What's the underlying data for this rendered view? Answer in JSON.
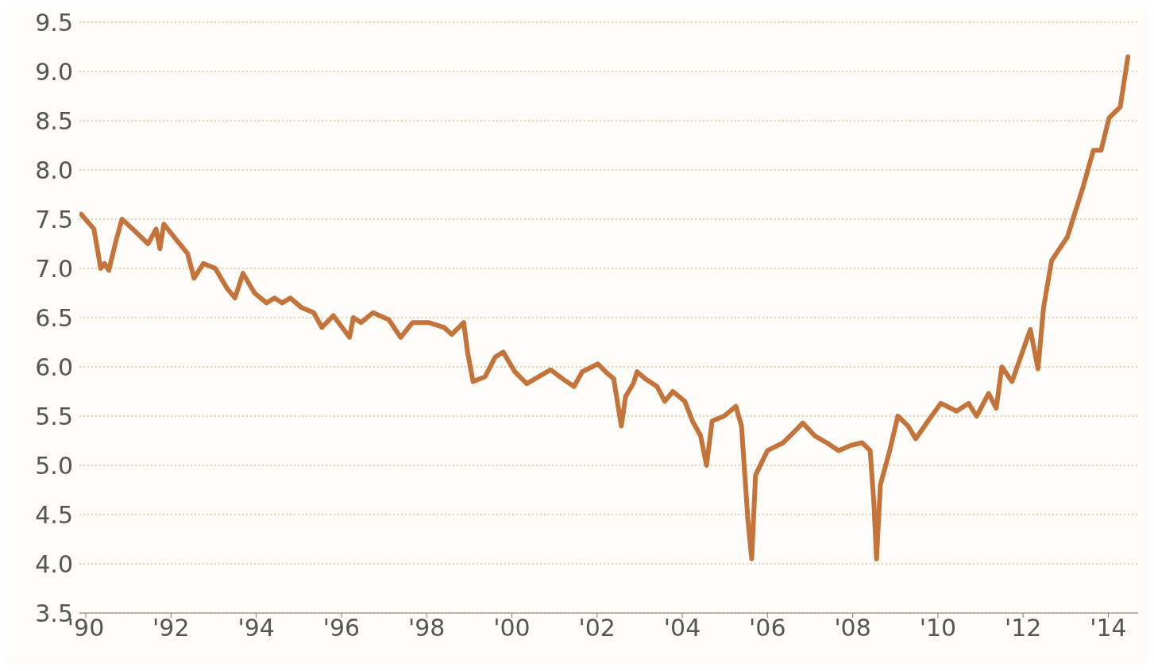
{
  "chart_data": {
    "type": "line",
    "x": [
      1989.89,
      1990.19,
      1990.35,
      1990.44,
      1990.54,
      1990.72,
      1990.85,
      1991.15,
      1991.46,
      1991.65,
      1991.74,
      1991.83,
      1992.11,
      1992.39,
      1992.54,
      1992.76,
      1993.04,
      1993.31,
      1993.5,
      1993.69,
      1993.96,
      1994.24,
      1994.43,
      1994.61,
      1994.8,
      1995.07,
      1995.35,
      1995.54,
      1995.81,
      1996.19,
      1996.28,
      1996.46,
      1996.74,
      1997.11,
      1997.39,
      1997.67,
      1998.04,
      1998.41,
      1998.59,
      1998.87,
      1998.96,
      1999.09,
      1999.37,
      1999.61,
      1999.8,
      2000.07,
      2000.35,
      2000.63,
      2000.91,
      2001.22,
      2001.46,
      2001.65,
      2002.02,
      2002.2,
      2002.39,
      2002.57,
      2002.67,
      2002.85,
      2002.94,
      2003.13,
      2003.41,
      2003.59,
      2003.78,
      2004.06,
      2004.24,
      2004.43,
      2004.57,
      2004.7,
      2004.98,
      2005.26,
      2005.39,
      2005.54,
      2005.63,
      2005.72,
      2006.0,
      2006.37,
      2006.65,
      2006.83,
      2007.11,
      2007.39,
      2007.67,
      2007.94,
      2008.22,
      2008.41,
      2008.5,
      2008.56,
      2008.65,
      2008.87,
      2009.06,
      2009.3,
      2009.48,
      2009.8,
      2010.07,
      2010.44,
      2010.72,
      2010.91,
      2011.19,
      2011.37,
      2011.5,
      2011.74,
      2012.17,
      2012.35,
      2012.48,
      2012.67,
      2013.04,
      2013.17,
      2013.41,
      2013.65,
      2013.83,
      2014.02,
      2014.28,
      2014.46
    ],
    "series": [
      {
        "color": "#c4743a",
        "values": [
          7.55,
          7.4,
          7.0,
          7.05,
          6.98,
          7.3,
          7.5,
          7.38,
          7.25,
          7.4,
          7.2,
          7.45,
          7.3,
          7.15,
          6.9,
          7.05,
          7.0,
          6.8,
          6.7,
          6.95,
          6.75,
          6.65,
          6.7,
          6.65,
          6.7,
          6.6,
          6.55,
          6.4,
          6.52,
          6.3,
          6.5,
          6.45,
          6.55,
          6.48,
          6.3,
          6.45,
          6.45,
          6.4,
          6.33,
          6.45,
          6.15,
          5.85,
          5.9,
          6.1,
          6.15,
          5.95,
          5.83,
          5.9,
          5.97,
          5.87,
          5.8,
          5.95,
          6.03,
          5.95,
          5.88,
          5.4,
          5.7,
          5.83,
          5.95,
          5.88,
          5.8,
          5.65,
          5.75,
          5.65,
          5.45,
          5.3,
          5.0,
          5.45,
          5.5,
          5.6,
          5.4,
          4.45,
          4.05,
          4.9,
          5.15,
          5.23,
          5.35,
          5.43,
          5.3,
          5.23,
          5.15,
          5.2,
          5.23,
          5.15,
          4.6,
          4.05,
          4.8,
          5.15,
          5.5,
          5.4,
          5.27,
          5.47,
          5.63,
          5.55,
          5.63,
          5.5,
          5.73,
          5.58,
          6.0,
          5.85,
          6.38,
          5.98,
          6.6,
          7.08,
          7.32,
          7.5,
          7.83,
          8.2,
          8.2,
          8.53,
          8.64,
          9.15
        ]
      }
    ],
    "xlim": [
      1989.85,
      2014.7
    ],
    "xticks": [
      {
        "value": 1990,
        "label": "'90"
      },
      {
        "value": 1992,
        "label": "'92"
      },
      {
        "value": 1994,
        "label": "'94"
      },
      {
        "value": 1996,
        "label": "'96"
      },
      {
        "value": 1998,
        "label": "'98"
      },
      {
        "value": 2000,
        "label": "'00"
      },
      {
        "value": 2002,
        "label": "'02"
      },
      {
        "value": 2004,
        "label": "'04"
      },
      {
        "value": 2006,
        "label": "'06"
      },
      {
        "value": 2008,
        "label": "'08"
      },
      {
        "value": 2010,
        "label": "'10"
      },
      {
        "value": 2012,
        "label": "'12"
      },
      {
        "value": 2014,
        "label": "'14"
      }
    ],
    "ylim": [
      3.5,
      9.5
    ],
    "yticks": [
      {
        "value": 3.5,
        "label": "3.5"
      },
      {
        "value": 4,
        "label": "4.0"
      },
      {
        "value": 4.5,
        "label": "4.5"
      },
      {
        "value": 5,
        "label": "5.0"
      },
      {
        "value": 5.5,
        "label": "5.5"
      },
      {
        "value": 6,
        "label": "6.0"
      },
      {
        "value": 6.5,
        "label": "6.5"
      },
      {
        "value": 7,
        "label": "7.0"
      },
      {
        "value": 7.5,
        "label": "7.5"
      },
      {
        "value": 8,
        "label": "8.0"
      },
      {
        "value": 8.5,
        "label": "8.5"
      },
      {
        "value": 9,
        "label": "9.0"
      },
      {
        "value": 9.5,
        "label": "9.5"
      }
    ],
    "grid": "y"
  }
}
